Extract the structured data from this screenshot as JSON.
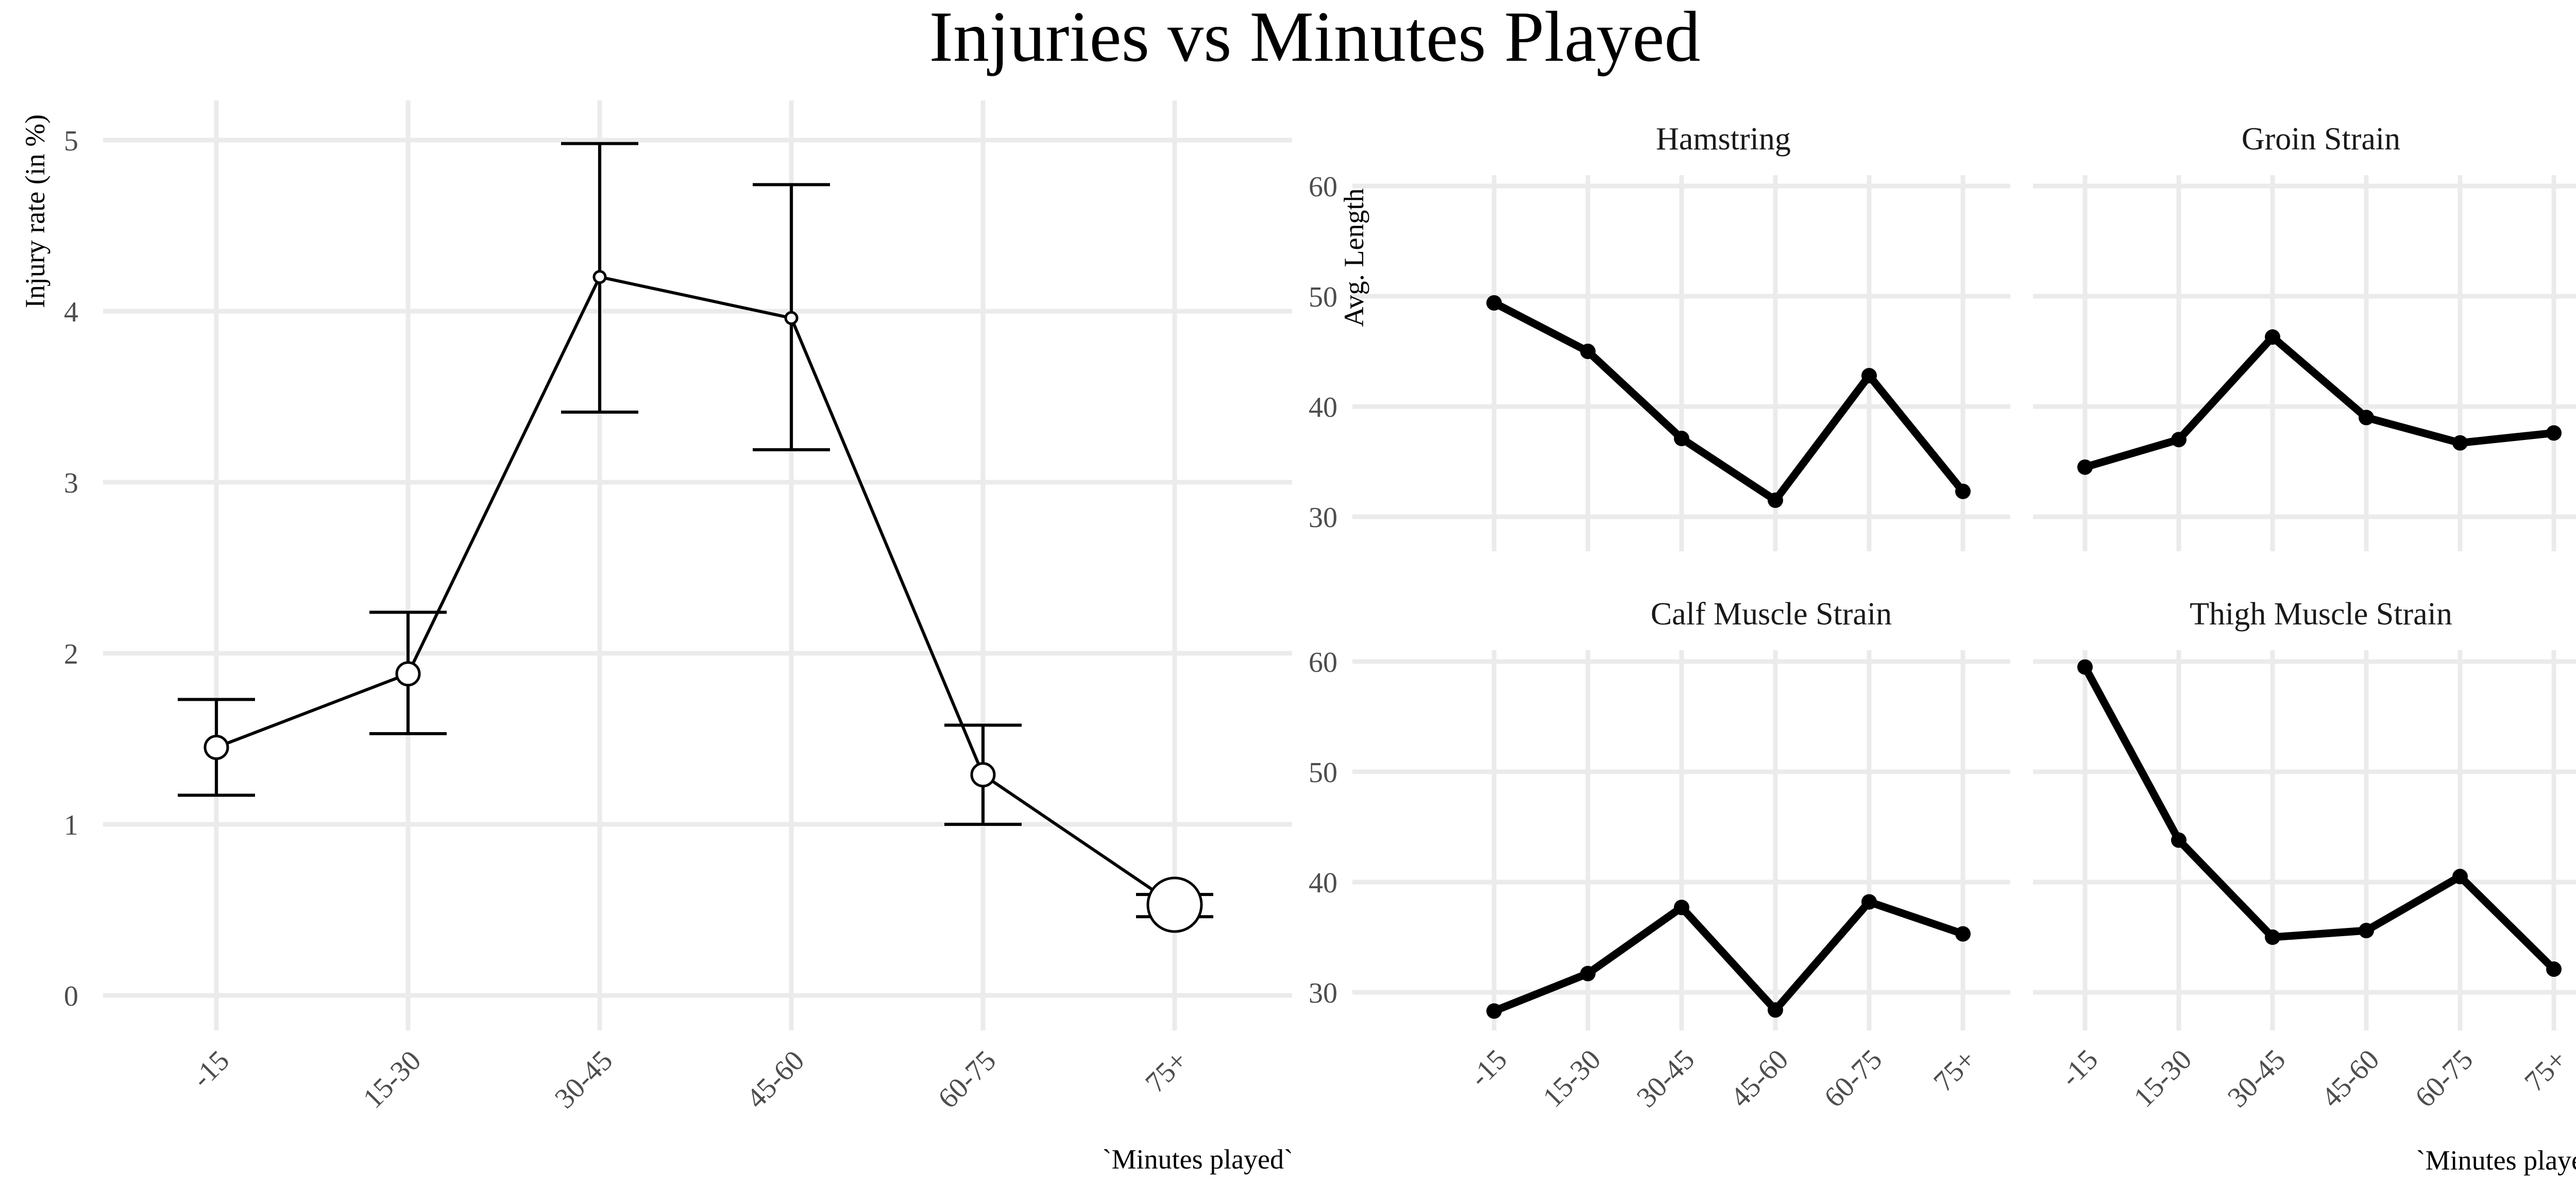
{
  "figure": {
    "title": "Injuries vs Minutes Played",
    "x_axis_title_left": "`Minutes played`",
    "x_axis_title_right": "`Minutes played`"
  },
  "chart_data": [
    {
      "type": "line",
      "panel": "left",
      "title": "",
      "xlabel": "`Minutes played`",
      "ylabel": "Injury rate (in %)",
      "categories": [
        "-15",
        "15-30",
        "30-45",
        "45-60",
        "60-75",
        "75+"
      ],
      "series": [
        {
          "values": [
            1.45,
            1.88,
            4.2,
            3.96,
            1.29,
            0.53
          ],
          "error_low": [
            1.17,
            1.53,
            3.41,
            3.19,
            1.0,
            0.46
          ],
          "error_high": [
            1.73,
            2.24,
            4.98,
            4.74,
            1.58,
            0.59
          ],
          "point_size_rank": [
            3,
            3,
            1,
            1,
            3,
            6
          ]
        }
      ],
      "ylim": [
        0,
        5.2
      ],
      "yticks": [
        "0",
        "1",
        "2",
        "3",
        "4",
        "5"
      ],
      "grid": true,
      "x_tick_rotation": "45"
    },
    {
      "type": "line",
      "panel": "facet",
      "ylabel": "Avg. Length",
      "xlabel": "`Minutes played`",
      "categories": [
        "-15",
        "15-30",
        "30-45",
        "45-60",
        "60-75",
        "75+"
      ],
      "ylim": [
        27,
        63
      ],
      "yticks": [
        "30",
        "40",
        "50",
        "60"
      ],
      "grid": true,
      "facets": [
        {
          "title": "Hamstring",
          "values": [
            49.4,
            45.0,
            37.1,
            31.5,
            42.8,
            32.3
          ]
        },
        {
          "title": "Groin Strain",
          "values": [
            34.5,
            37.0,
            46.3,
            39.0,
            36.7,
            37.6
          ]
        },
        {
          "title": "Calf Muscle Strain",
          "values": [
            28.3,
            31.7,
            37.7,
            28.4,
            38.2,
            35.3
          ]
        },
        {
          "title": "Thigh Muscle Strain",
          "values": [
            59.5,
            43.8,
            35.0,
            35.6,
            40.5,
            32.1
          ]
        }
      ]
    }
  ],
  "colors": {
    "line": "#000000",
    "grid": "#ebebeb",
    "tick_text": "#4d4d4d",
    "background": "#ffffff",
    "point_fill_left": "#ffffff"
  }
}
